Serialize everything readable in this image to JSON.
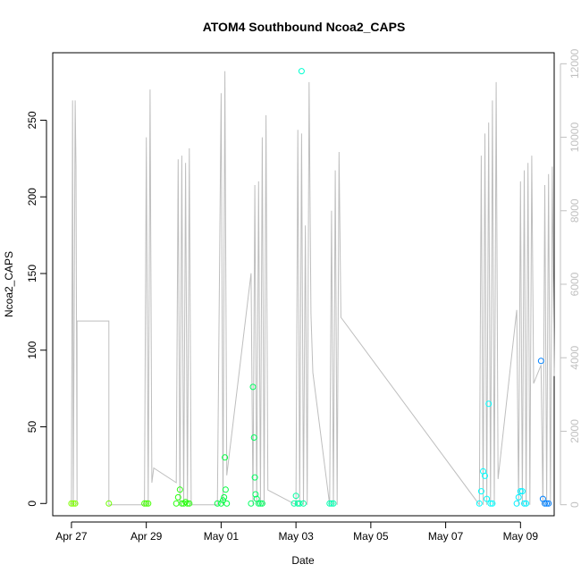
{
  "chart_data": {
    "type": "scatter",
    "title": "ATOM4 Southbound Ncoa2_CAPS",
    "xlabel": "Date",
    "ylabel": "Ncoa2_CAPS",
    "x_ticks": [
      "Apr 27",
      "Apr 29",
      "May 01",
      "May 03",
      "May 05",
      "May 07",
      "May 09"
    ],
    "y_ticks": [
      "0",
      "50",
      "100",
      "150",
      "200",
      "250"
    ],
    "y2_ticks": [
      "0",
      "2000",
      "4000",
      "6000",
      "8000",
      "10000",
      "12000"
    ],
    "xlim_days": [
      -0.5,
      12.9
    ],
    "ylim": [
      -8,
      294
    ],
    "y2lim": [
      -300,
      12300
    ],
    "grid": false,
    "points": [
      {
        "d": 0.0,
        "v": 0,
        "color": "#7fff00"
      },
      {
        "d": 0.05,
        "v": 0,
        "color": "#7fff00"
      },
      {
        "d": 0.1,
        "v": 0,
        "color": "#7fff00"
      },
      {
        "d": 1.0,
        "v": 0,
        "color": "#6cff00"
      },
      {
        "d": 1.95,
        "v": 0,
        "color": "#44ff00"
      },
      {
        "d": 2.0,
        "v": 0,
        "color": "#44ff00"
      },
      {
        "d": 2.05,
        "v": 0,
        "color": "#44ff00"
      },
      {
        "d": 2.8,
        "v": 0,
        "color": "#2aff10"
      },
      {
        "d": 2.85,
        "v": 4,
        "color": "#2aff10"
      },
      {
        "d": 2.9,
        "v": 9,
        "color": "#2aff10"
      },
      {
        "d": 2.95,
        "v": 0,
        "color": "#2aff10"
      },
      {
        "d": 3.0,
        "v": 0,
        "color": "#2aff10"
      },
      {
        "d": 3.05,
        "v": 1,
        "color": "#2aff10"
      },
      {
        "d": 3.1,
        "v": 0,
        "color": "#2aff10"
      },
      {
        "d": 3.15,
        "v": 0,
        "color": "#2aff10"
      },
      {
        "d": 3.9,
        "v": 0,
        "color": "#00ff40"
      },
      {
        "d": 4.0,
        "v": 0,
        "color": "#00ff40"
      },
      {
        "d": 4.05,
        "v": 2,
        "color": "#00ff40"
      },
      {
        "d": 4.08,
        "v": 4,
        "color": "#00ff40"
      },
      {
        "d": 4.1,
        "v": 30,
        "color": "#00ff40"
      },
      {
        "d": 4.12,
        "v": 9,
        "color": "#00ff40"
      },
      {
        "d": 4.15,
        "v": 0,
        "color": "#00ff40"
      },
      {
        "d": 4.8,
        "v": 0,
        "color": "#00ff60"
      },
      {
        "d": 4.85,
        "v": 76,
        "color": "#00ff60"
      },
      {
        "d": 4.88,
        "v": 43,
        "color": "#00ff60"
      },
      {
        "d": 4.9,
        "v": 17,
        "color": "#00ff60"
      },
      {
        "d": 4.92,
        "v": 6,
        "color": "#00ff60"
      },
      {
        "d": 4.95,
        "v": 3,
        "color": "#00ff60"
      },
      {
        "d": 5.0,
        "v": 0,
        "color": "#00ff60"
      },
      {
        "d": 5.05,
        "v": 0,
        "color": "#00ff60"
      },
      {
        "d": 5.1,
        "v": 0,
        "color": "#00ff60"
      },
      {
        "d": 5.95,
        "v": 0,
        "color": "#00ffa0"
      },
      {
        "d": 6.0,
        "v": 5,
        "color": "#00ffa0"
      },
      {
        "d": 6.05,
        "v": 0,
        "color": "#00ffa0"
      },
      {
        "d": 6.1,
        "v": 0,
        "color": "#00ffa0"
      },
      {
        "d": 6.15,
        "v": 282,
        "color": "#00ffd0"
      },
      {
        "d": 6.2,
        "v": 0,
        "color": "#00ffa0"
      },
      {
        "d": 6.9,
        "v": 0,
        "color": "#00ffb0"
      },
      {
        "d": 6.95,
        "v": 0,
        "color": "#00ffb0"
      },
      {
        "d": 7.0,
        "v": 0,
        "color": "#00ffb0"
      },
      {
        "d": 10.9,
        "v": 0,
        "color": "#00ffff"
      },
      {
        "d": 10.95,
        "v": 8,
        "color": "#00ffff"
      },
      {
        "d": 11.0,
        "v": 21,
        "color": "#00ffff"
      },
      {
        "d": 11.05,
        "v": 18,
        "color": "#00ffff"
      },
      {
        "d": 11.1,
        "v": 3,
        "color": "#00ffff"
      },
      {
        "d": 11.15,
        "v": 65,
        "color": "#00ffff"
      },
      {
        "d": 11.2,
        "v": 0,
        "color": "#00ffff"
      },
      {
        "d": 11.25,
        "v": 0,
        "color": "#00ffff"
      },
      {
        "d": 11.9,
        "v": 0,
        "color": "#00f0ff"
      },
      {
        "d": 11.95,
        "v": 4,
        "color": "#00f0ff"
      },
      {
        "d": 12.0,
        "v": 8,
        "color": "#00f0ff"
      },
      {
        "d": 12.05,
        "v": 8,
        "color": "#00f0ff"
      },
      {
        "d": 12.1,
        "v": 0,
        "color": "#00f0ff"
      },
      {
        "d": 12.15,
        "v": 0,
        "color": "#00f0ff"
      },
      {
        "d": 12.55,
        "v": 93,
        "color": "#0080ff"
      },
      {
        "d": 12.6,
        "v": 3,
        "color": "#0080ff"
      },
      {
        "d": 12.65,
        "v": 0,
        "color": "#0080ff"
      },
      {
        "d": 12.7,
        "v": 0,
        "color": "#0080ff"
      },
      {
        "d": 12.75,
        "v": 0,
        "color": "#0080ff"
      }
    ],
    "line_series": {
      "name": "",
      "color": "#bebebe",
      "values": [
        [
          0.0,
          0
        ],
        [
          0.0,
          0
        ],
        [
          0.03,
          11000
        ],
        [
          0.05,
          0
        ],
        [
          0.1,
          11000
        ],
        [
          0.12,
          9200
        ],
        [
          0.15,
          0
        ],
        [
          0.15,
          5000
        ],
        [
          1.0,
          5000
        ],
        [
          1.0,
          0
        ],
        [
          1.95,
          0
        ],
        [
          2.0,
          10000
        ],
        [
          2.05,
          0
        ],
        [
          2.1,
          11300
        ],
        [
          2.15,
          600
        ],
        [
          2.2,
          1000
        ],
        [
          2.8,
          600
        ],
        [
          2.85,
          9400
        ],
        [
          2.9,
          0
        ],
        [
          2.95,
          9500
        ],
        [
          3.0,
          0
        ],
        [
          3.05,
          9300
        ],
        [
          3.1,
          0
        ],
        [
          3.15,
          9700
        ],
        [
          3.2,
          0
        ],
        [
          3.9,
          0
        ],
        [
          4.0,
          11200
        ],
        [
          4.05,
          0
        ],
        [
          4.1,
          11800
        ],
        [
          4.15,
          800
        ],
        [
          4.8,
          6300
        ],
        [
          4.85,
          0
        ],
        [
          4.9,
          8700
        ],
        [
          4.95,
          0
        ],
        [
          5.0,
          8800
        ],
        [
          5.05,
          0
        ],
        [
          5.1,
          10000
        ],
        [
          5.15,
          0
        ],
        [
          5.2,
          10600
        ],
        [
          5.25,
          400
        ],
        [
          6.0,
          0
        ],
        [
          6.05,
          10200
        ],
        [
          6.1,
          0
        ],
        [
          6.15,
          10100
        ],
        [
          6.2,
          0
        ],
        [
          6.25,
          7600
        ],
        [
          6.3,
          0
        ],
        [
          6.35,
          11500
        ],
        [
          6.4,
          5200
        ],
        [
          6.45,
          3600
        ],
        [
          6.9,
          0
        ],
        [
          6.95,
          8000
        ],
        [
          7.0,
          0
        ],
        [
          7.05,
          9100
        ],
        [
          7.1,
          0
        ],
        [
          7.15,
          9600
        ],
        [
          7.2,
          5100
        ],
        [
          10.9,
          0
        ],
        [
          10.95,
          9500
        ],
        [
          11.0,
          0
        ],
        [
          11.05,
          10100
        ],
        [
          11.1,
          0
        ],
        [
          11.15,
          10400
        ],
        [
          11.2,
          0
        ],
        [
          11.25,
          11000
        ],
        [
          11.3,
          0
        ],
        [
          11.35,
          11500
        ],
        [
          11.4,
          700
        ],
        [
          11.9,
          5300
        ],
        [
          11.95,
          0
        ],
        [
          12.0,
          8800
        ],
        [
          12.05,
          0
        ],
        [
          12.1,
          9100
        ],
        [
          12.15,
          0
        ],
        [
          12.2,
          9300
        ],
        [
          12.25,
          0
        ],
        [
          12.3,
          9500
        ],
        [
          12.35,
          3300
        ],
        [
          12.55,
          3800
        ],
        [
          12.6,
          0
        ],
        [
          12.65,
          8700
        ],
        [
          12.7,
          0
        ],
        [
          12.75,
          9000
        ],
        [
          12.8,
          0
        ],
        [
          12.85,
          9200
        ],
        [
          12.9,
          3500
        ]
      ]
    }
  }
}
